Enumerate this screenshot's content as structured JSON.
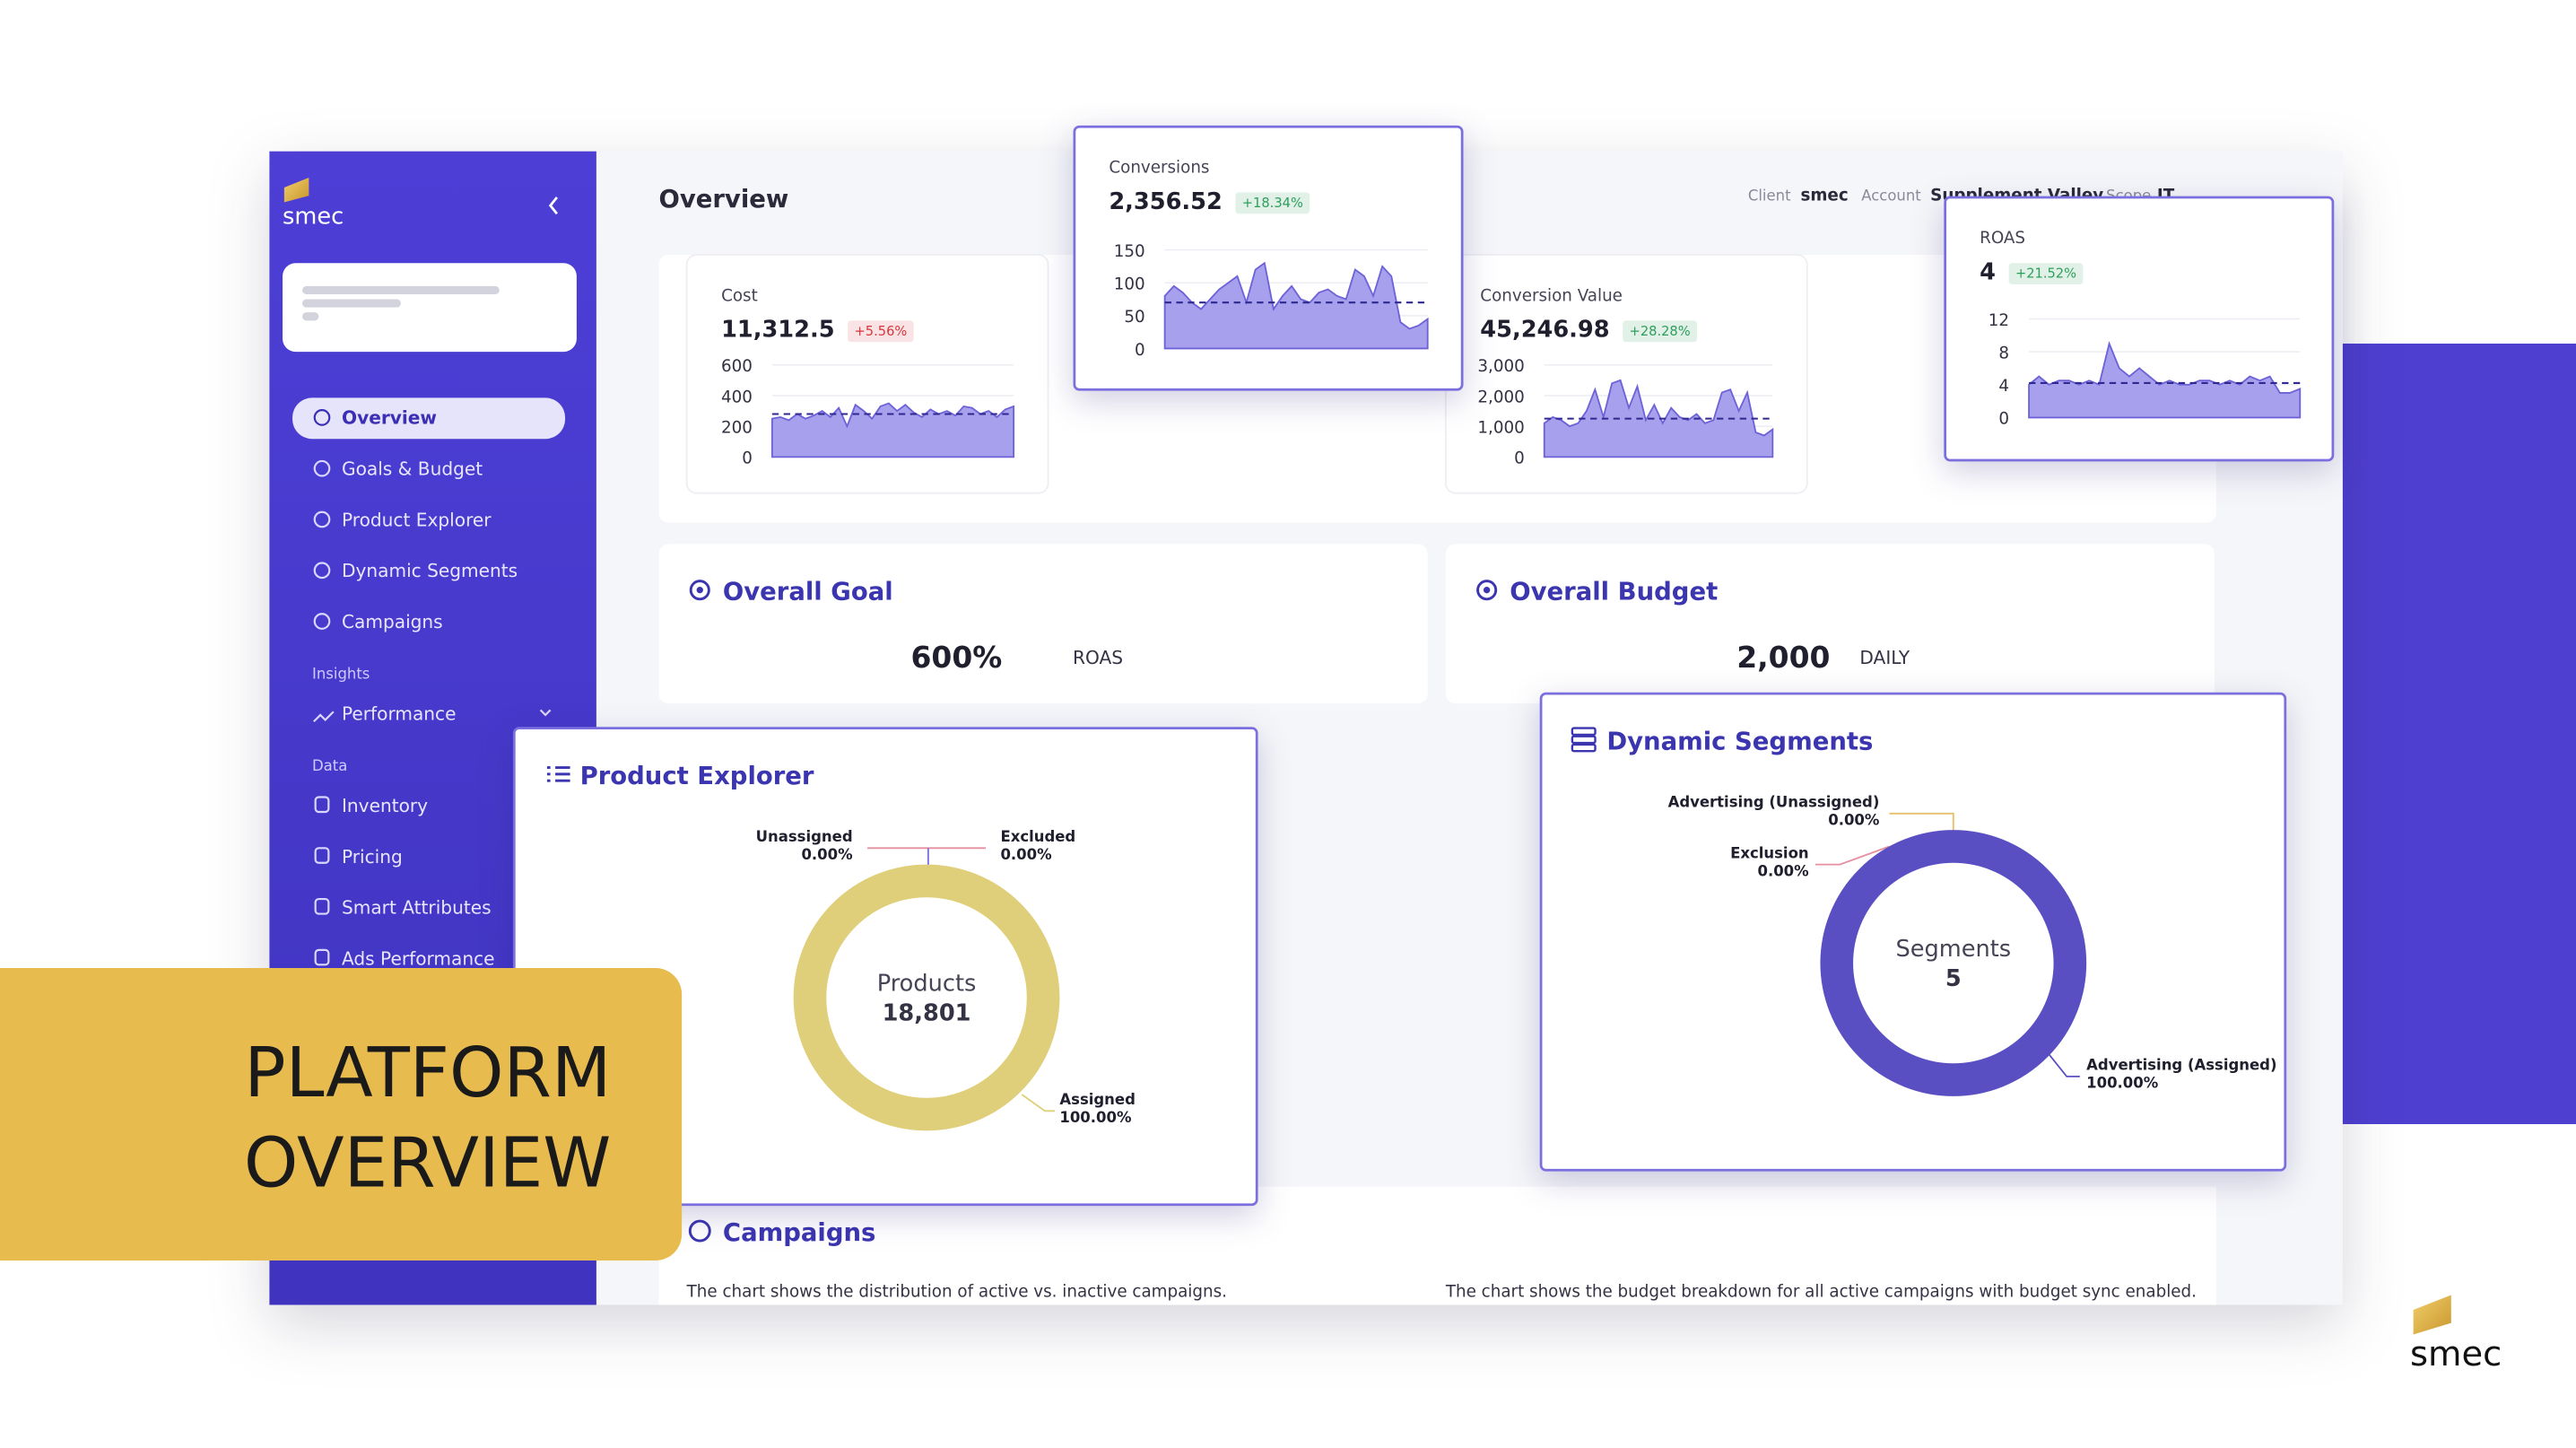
{
  "header": {
    "title": "Overview",
    "client_label": "Client",
    "client": "smec",
    "account_label": "Account",
    "account": "Supplement Valley",
    "scope_label": "Scope",
    "scope": "IT"
  },
  "sidebar": {
    "logo": "smec",
    "nav": [
      "Overview",
      "Goals & Budget",
      "Product Explorer",
      "Dynamic Segments",
      "Campaigns"
    ],
    "insights_label": "Insights",
    "insights": [
      "Performance"
    ],
    "data_label": "Data",
    "data": [
      "Inventory",
      "Pricing",
      "Smart Attributes",
      "Ads Performance"
    ]
  },
  "metrics": [
    {
      "label": "Cost",
      "value": "11,312.5",
      "change": "+5.56%",
      "badge_color": "#d9363e",
      "ylim": [
        0,
        600
      ],
      "yticks": [
        0,
        200,
        400,
        600
      ],
      "average": 280,
      "values": [
        250,
        260,
        240,
        280,
        250,
        270,
        300,
        260,
        320,
        200,
        340,
        300,
        250,
        330,
        350,
        300,
        340,
        290,
        260,
        310,
        280,
        300,
        270,
        330,
        320,
        280,
        300,
        260,
        310,
        330
      ]
    },
    {
      "label": "Conversions",
      "value": "2,356.52",
      "change": "+18.34%",
      "badge_color": "#2e9e5b",
      "ylim": [
        0,
        150
      ],
      "yticks": [
        0,
        50,
        100,
        150
      ],
      "average": 70,
      "values": [
        80,
        95,
        85,
        70,
        60,
        75,
        90,
        100,
        110,
        70,
        120,
        130,
        60,
        80,
        95,
        75,
        70,
        85,
        90,
        80,
        75,
        120,
        110,
        80,
        125,
        110,
        40,
        30,
        35,
        45
      ]
    },
    {
      "label": "Conversion Value",
      "value": "45,246.98",
      "change": "+28.28%",
      "badge_color": "#2e9e5b",
      "ylim": [
        0,
        3000
      ],
      "yticks": [
        0,
        {
          "value": 1000,
          "label": "1,000"
        },
        {
          "value": 2000,
          "label": "2,000"
        },
        {
          "value": 3000,
          "label": "3,000"
        }
      ],
      "average": 1250,
      "values": [
        1100,
        1300,
        1200,
        1000,
        1100,
        1500,
        2200,
        1300,
        2400,
        2500,
        1600,
        2300,
        1200,
        1700,
        1100,
        1600,
        1300,
        1200,
        1400,
        1100,
        1200,
        2100,
        2200,
        1500,
        2100,
        800,
        700,
        900
      ]
    },
    {
      "label": "ROAS",
      "value": "4",
      "change": "+21.52%",
      "badge_color": "#2e9e5b",
      "ylim": [
        0,
        12
      ],
      "yticks": [
        0,
        4,
        8,
        12
      ],
      "average": 4.2,
      "values": [
        4,
        5,
        4,
        4.5,
        4.5,
        4,
        4.5,
        4,
        9,
        6,
        5,
        6,
        5,
        4,
        4.5,
        4,
        4,
        4.5,
        4.5,
        4,
        4.5,
        4,
        5,
        4.5,
        5,
        3,
        3,
        3.5
      ]
    }
  ],
  "goal": {
    "title": "Overall Goal",
    "value": "600%",
    "unit": "ROAS"
  },
  "budget": {
    "title": "Overall Budget",
    "value": "2,000",
    "unit": "DAILY"
  },
  "donuts": [
    {
      "title": "Product Explorer",
      "center_label": "Products",
      "center_value": "18,801",
      "segments": [
        {
          "name": "Unassigned",
          "value": 0,
          "value_label": "0.00%",
          "color": "#e58fa0"
        },
        {
          "name": "Excluded",
          "value": 0,
          "value_label": "0.00%",
          "color": "#7b6fe0"
        },
        {
          "name": "Assigned",
          "value": 100,
          "value_label": "100.00%",
          "color": "#dfcf7a"
        }
      ]
    },
    {
      "title": "Dynamic Segments",
      "center_label": "Segments",
      "center_value": "5",
      "segments": [
        {
          "name": "Advertising (Unassigned)",
          "value": 0,
          "value_label": "0.00%",
          "color": "#e8c06a"
        },
        {
          "name": "Exclusion",
          "value": 0,
          "value_label": "0.00%",
          "color": "#e58fa0"
        },
        {
          "name": "Advertising (Assigned)",
          "value": 100,
          "value_label": "100.00%",
          "color": "#5a4fc2"
        }
      ]
    }
  ],
  "campaigns": {
    "title": "Campaigns",
    "left_text": "The chart shows the distribution of active vs. inactive campaigns.",
    "right_text": "The chart shows the budget breakdown for all active campaigns with budget sync enabled."
  },
  "banner": {
    "line1": "PLATFORM",
    "line2": "OVERVIEW"
  },
  "brand": "smec"
}
